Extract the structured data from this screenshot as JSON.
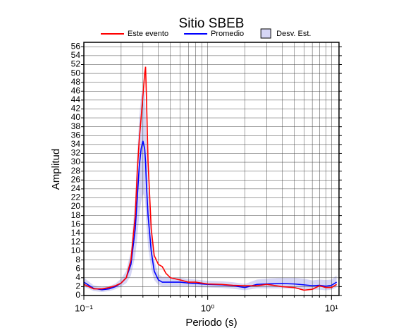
{
  "chart_data": {
    "type": "line",
    "title": "Sitio SBEB",
    "xlabel": "Periodo (s)",
    "ylabel": "Amplitud",
    "xscale": "log",
    "grid": true,
    "x": [
      0.1,
      0.12,
      0.14,
      0.16,
      0.18,
      0.2,
      0.22,
      0.24,
      0.26,
      0.27,
      0.28,
      0.29,
      0.3,
      0.31,
      0.315,
      0.32,
      0.33,
      0.35,
      0.37,
      0.4,
      0.43,
      0.46,
      0.5,
      0.6,
      0.7,
      0.8,
      1,
      1.3,
      1.6,
      2,
      2.5,
      3,
      4,
      5,
      6,
      7,
      8,
      9,
      10,
      11
    ],
    "series": [
      {
        "name": "Este evento",
        "color": "#ff0000",
        "values": [
          2.5,
          1.5,
          1.5,
          1.8,
          2.2,
          2.8,
          4,
          8,
          18,
          28,
          35,
          40,
          45,
          50,
          51.5,
          45,
          30,
          15,
          9,
          7,
          6.5,
          5,
          4,
          3.5,
          3,
          3,
          2.6,
          2.5,
          2.3,
          2.2,
          2.2,
          2.5,
          2,
          1.8,
          1.2,
          1.4,
          2.2,
          1.8,
          1.8,
          2.5
        ]
      },
      {
        "name": "Promedio",
        "color": "#0000ff",
        "values": [
          3,
          1.6,
          1.3,
          1.5,
          2,
          2.8,
          4,
          7,
          15,
          22,
          29,
          33,
          34.8,
          33,
          30,
          25,
          18,
          10,
          5.5,
          3.5,
          3,
          3,
          3,
          3,
          2.8,
          2.7,
          2.5,
          2.4,
          2.2,
          1.8,
          2.5,
          2.6,
          2.7,
          2.6,
          2.4,
          2.2,
          2.3,
          2.1,
          2.3,
          3
        ]
      }
    ],
    "band": {
      "name": "Desv. Est.",
      "color": "#d6d6f5",
      "lower": [
        2,
        1,
        0.8,
        1,
        1.4,
        2,
        2.8,
        4.5,
        9,
        13,
        18,
        21,
        23,
        22,
        20,
        16,
        11,
        6,
        3.5,
        2.4,
        2,
        2,
        2,
        2.1,
        2,
        1.9,
        1.8,
        1.7,
        1.5,
        1.2,
        1.6,
        1.6,
        1.6,
        1.5,
        1.4,
        1.3,
        1.3,
        1.2,
        1.3,
        1.8
      ],
      "upper": [
        4,
        2.3,
        1.9,
        2.1,
        2.7,
        3.8,
        5.5,
        10,
        22,
        32,
        40,
        45,
        47,
        46,
        42,
        35,
        25,
        14,
        8,
        4.8,
        4.2,
        4.2,
        4.1,
        4,
        3.7,
        3.6,
        3.3,
        3.2,
        3,
        2.6,
        3.6,
        3.8,
        4,
        4,
        3.8,
        3.4,
        3.6,
        3.5,
        3.6,
        4.5
      ]
    },
    "xlim": [
      0.1,
      11.5
    ],
    "ylim": [
      0,
      57
    ],
    "xticks": [
      {
        "value": 0.1,
        "label": "10⁻¹"
      },
      {
        "value": 1,
        "label": "10⁰"
      },
      {
        "value": 10,
        "label": "10¹"
      }
    ],
    "xminorticks": [
      0.2,
      0.3,
      0.4,
      0.5,
      0.6,
      0.7,
      0.8,
      0.9,
      2,
      3,
      4,
      5,
      6,
      7,
      8,
      9
    ],
    "yticks": [
      0,
      2,
      4,
      6,
      8,
      10,
      12,
      14,
      16,
      18,
      20,
      22,
      24,
      26,
      28,
      30,
      32,
      34,
      36,
      38,
      40,
      42,
      44,
      46,
      48,
      50,
      52,
      54,
      56
    ]
  }
}
